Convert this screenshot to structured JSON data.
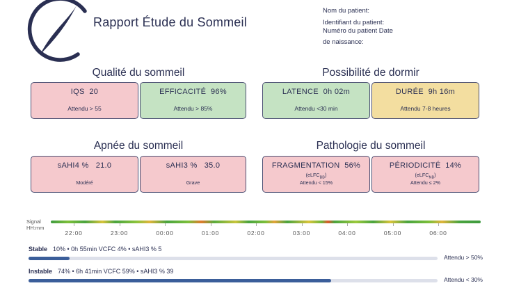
{
  "header": {
    "title": "Rapport Étude du Sommeil",
    "patient_lines": [
      "Nom du patient:",
      "Identifiant du patient:",
      "Numéro du patient Date",
      "de naissance:"
    ]
  },
  "sections": {
    "quality": "Qualité du sommeil",
    "possibility": "Possibilité de dormir",
    "apnea": "Apnée du sommeil",
    "pathology": "Pathologie du sommeil"
  },
  "cards": {
    "iqs": {
      "label": "IQS",
      "value": "20",
      "note": "Attendu > 55",
      "color": "#f5c9cd"
    },
    "efficacite": {
      "label": "EFFICACITÉ",
      "value": "96%",
      "note": "Attendu > 85%",
      "color": "#c5e3c3"
    },
    "latence": {
      "label": "LATENCE",
      "value": "0h 02m",
      "note": "Attendu <30 min",
      "color": "#c5e3c3"
    },
    "duree": {
      "label": "DURÉE",
      "value": "9h 16m",
      "note": "Attendu 7-8 heures",
      "color": "#f3dea0"
    },
    "sahi4": {
      "label": "sAHI4 %",
      "value": "21.0",
      "note": "Modéré",
      "color": "#f5c9cd"
    },
    "sahi3": {
      "label": "sAHI3 %",
      "value": "35.0",
      "note": "Grave",
      "color": "#f5c9cd"
    },
    "fragmentation": {
      "label": "FRAGMENTATION",
      "value": "56%",
      "qualifier": "(eLFC",
      "qualifier_sub": "BB",
      "note": "Attendu < 15%",
      "color": "#f5c9cd"
    },
    "periodicite": {
      "label": "PÉRIODICITÉ",
      "value": "14%",
      "qualifier": "(eLFC",
      "qualifier_sub": "NB",
      "note": "Attendu ≤ 2%",
      "color": "#f5c9cd"
    }
  },
  "timeline": {
    "signal_label": "Signal",
    "time_label": "HH:mm",
    "ticks": [
      "22:00",
      "23:00",
      "00:00",
      "01:00",
      "02:00",
      "03:00",
      "04:00",
      "05:00",
      "06:00"
    ]
  },
  "stable": {
    "label": "Stable",
    "text": "10% • 0h 55min   VCFC 4% • sAHI3 % 5",
    "fraction": 0.1,
    "target": "Attendu > 50%"
  },
  "instable": {
    "label": "Instable",
    "text": "74% • 6h 41min   VCFC 59% • sAHI3 % 39",
    "fraction": 0.74,
    "target": "Attendu < 30%"
  },
  "colors": {
    "pink": "#f5c9cd",
    "green": "#c5e3c3",
    "yellow": "#f3dea0",
    "bar": "#3b5e9a"
  }
}
